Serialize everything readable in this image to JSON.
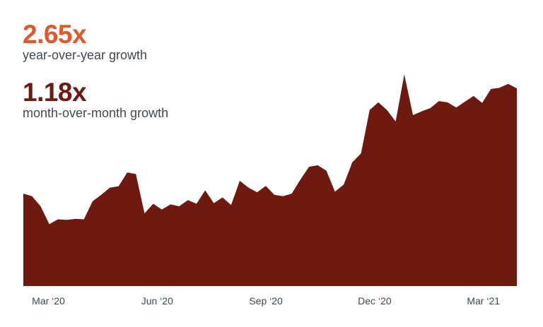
{
  "stats": {
    "yoy_value": "2.65x",
    "yoy_label": "year-over-year growth",
    "mom_value": "1.18x",
    "mom_label": "month-over-month growth"
  },
  "colors": {
    "yoy_accent": "#e0582c",
    "area_fill": "#6e1a10",
    "label_text": "#3f4a54"
  },
  "chart_data": {
    "type": "area",
    "title": "",
    "xlabel": "",
    "ylabel": "",
    "grid": false,
    "legend": "none",
    "ylim": [
      0,
      100
    ],
    "xlim": [
      0,
      59
    ],
    "tick_labels": [
      {
        "x": 3,
        "label": "Mar ‘20"
      },
      {
        "x": 16,
        "label": "Jun ‘20"
      },
      {
        "x": 29,
        "label": "Sep ‘20"
      },
      {
        "x": 42,
        "label": "Dec ‘20"
      },
      {
        "x": 55,
        "label": "Mar ‘21"
      }
    ],
    "series": [
      {
        "values": [
          43.5,
          42.3,
          37.5,
          29.1,
          31.4,
          31.1,
          31.6,
          31.4,
          39.9,
          42.9,
          46.3,
          46.9,
          53.4,
          52.7,
          34.2,
          38.7,
          36.0,
          38.4,
          37.5,
          40.4,
          38.7,
          45.0,
          39.0,
          41.7,
          38.1,
          49.5,
          46.3,
          44.1,
          47.1,
          42.9,
          42.3,
          43.5,
          50.1,
          56.1,
          56.8,
          54.3,
          44.4,
          47.7,
          58.2,
          62.4,
          82.8,
          86.4,
          82.8,
          77.4,
          99.6,
          80.4,
          82.2,
          83.7,
          87.0,
          86.4,
          84.0,
          86.7,
          89.4,
          86.1,
          92.7,
          93.3,
          95.1,
          93.0
        ]
      }
    ]
  }
}
